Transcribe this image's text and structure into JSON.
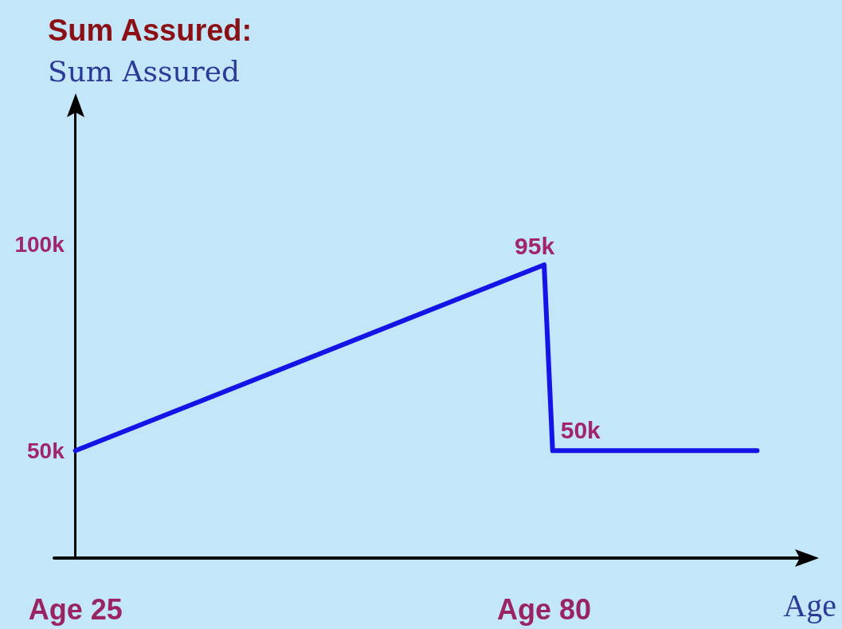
{
  "chart_data": {
    "type": "line",
    "title": "Sum Assured:",
    "ylabel": "Sum Assured",
    "xlabel": "Age",
    "categories": [
      null,
      null,
      "Age 25",
      null,
      null,
      null,
      null,
      null,
      null,
      null,
      null,
      null,
      null,
      null,
      null,
      null,
      null,
      null,
      null,
      null,
      null,
      null,
      null,
      null,
      null,
      null,
      null,
      null,
      null,
      null,
      null,
      null,
      null,
      null,
      null,
      null,
      null,
      null,
      null,
      null,
      null,
      null,
      null,
      null,
      null,
      null,
      null,
      null,
      null,
      null,
      null,
      null,
      null,
      null,
      null,
      null,
      null,
      "Age 80",
      null,
      null,
      null,
      null,
      null,
      null,
      null,
      null,
      null,
      null,
      null,
      null,
      null,
      null,
      null,
      null,
      null,
      null,
      null,
      null,
      null,
      null,
      null,
      null,
      null,
      null,
      null,
      null,
      null,
      null,
      null
    ],
    "series": [
      {
        "color": "#1414e6",
        "values": [
          null,
          null,
          50000,
          null,
          null,
          null,
          null,
          null,
          null,
          null,
          null,
          null,
          null,
          null,
          null,
          null,
          null,
          null,
          null,
          null,
          null,
          null,
          null,
          null,
          null,
          null,
          null,
          null,
          null,
          null,
          null,
          null,
          null,
          null,
          null,
          null,
          null,
          null,
          null,
          null,
          null,
          null,
          null,
          null,
          null,
          null,
          null,
          null,
          null,
          null,
          null,
          null,
          null,
          null,
          null,
          null,
          null,
          95000,
          50000,
          null,
          null,
          null,
          null,
          null,
          null,
          null,
          null,
          null,
          null,
          null,
          null,
          null,
          null,
          null,
          null,
          null,
          null,
          null,
          null,
          null,
          null,
          null,
          50000,
          null,
          null,
          null,
          null,
          null,
          null
        ],
        "value_labels": [
          null,
          null,
          null,
          null,
          null,
          null,
          null,
          null,
          null,
          null,
          null,
          null,
          null,
          null,
          null,
          null,
          null,
          null,
          null,
          null,
          null,
          null,
          null,
          null,
          null,
          null,
          null,
          null,
          null,
          null,
          null,
          null,
          null,
          null,
          null,
          null,
          null,
          null,
          null,
          null,
          null,
          null,
          null,
          null,
          null,
          null,
          null,
          null,
          null,
          null,
          null,
          null,
          null,
          null,
          null,
          null,
          null,
          "95k",
          "50k",
          null,
          null,
          null,
          null,
          null,
          null,
          null,
          null,
          null,
          null,
          null,
          null,
          null,
          null,
          null,
          null,
          null,
          null,
          null,
          null,
          null,
          null,
          null,
          null,
          null,
          null,
          null,
          null,
          null,
          null
        ]
      }
    ],
    "ylim": [
      24000,
      135000
    ],
    "yticks": [
      {
        "value": 50000,
        "label": "50k"
      },
      {
        "value": 100000,
        "label": "100k"
      }
    ],
    "marker": "none",
    "line_style": "solid"
  }
}
